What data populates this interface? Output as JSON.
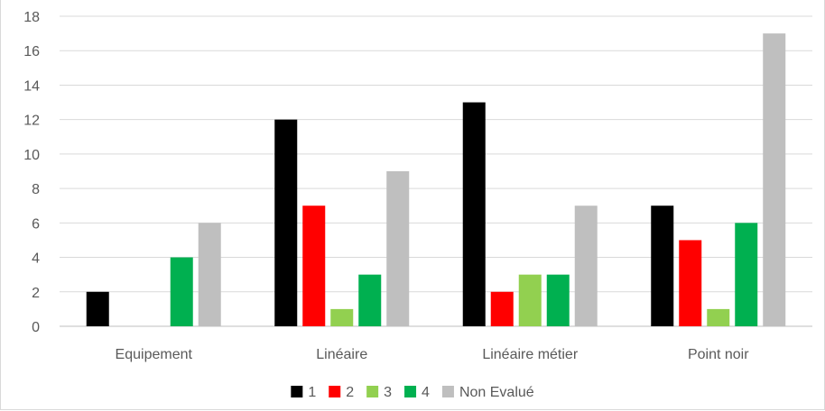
{
  "chart_data": {
    "type": "bar",
    "title": "",
    "xlabel": "",
    "ylabel": "",
    "ylim": [
      0,
      18
    ],
    "yticks": [
      "0",
      "2",
      "4",
      "6",
      "8",
      "10",
      "12",
      "14",
      "16",
      "18"
    ],
    "grid": true,
    "legend_position": "bottom",
    "categories": [
      "Equipement",
      "Linéaire",
      "Linéaire métier",
      "Point noir"
    ],
    "series": [
      {
        "name": "1",
        "color": "#000000",
        "values": [
          2,
          12,
          13,
          7
        ]
      },
      {
        "name": "2",
        "color": "#ff0000",
        "values": [
          0,
          7,
          2,
          5
        ]
      },
      {
        "name": "3",
        "color": "#92d050",
        "values": [
          0,
          1,
          3,
          1
        ]
      },
      {
        "name": "4",
        "color": "#00b050",
        "values": [
          4,
          3,
          3,
          6
        ]
      },
      {
        "name": "Non Evalué",
        "color": "#bfbfbf",
        "values": [
          6,
          9,
          7,
          17
        ]
      }
    ]
  }
}
